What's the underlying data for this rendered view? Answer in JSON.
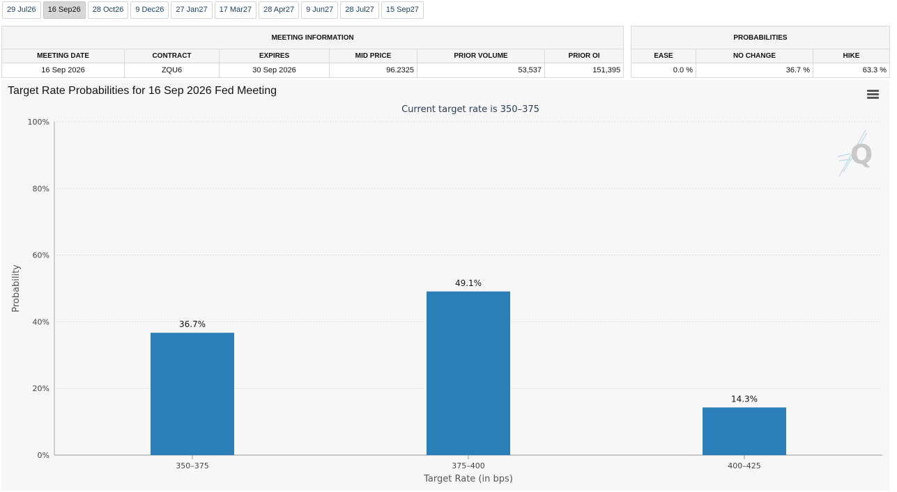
{
  "tabs": [
    {
      "label": "29 Jul26",
      "active": false
    },
    {
      "label": "16 Sep26",
      "active": true
    },
    {
      "label": "28 Oct26",
      "active": false
    },
    {
      "label": "9 Dec26",
      "active": false
    },
    {
      "label": "27 Jan27",
      "active": false
    },
    {
      "label": "17 Mar27",
      "active": false
    },
    {
      "label": "28 Apr27",
      "active": false
    },
    {
      "label": "9 Jun27",
      "active": false
    },
    {
      "label": "28 Jul27",
      "active": false
    },
    {
      "label": "15 Sep27",
      "active": false
    }
  ],
  "meeting_info": {
    "title": "MEETING INFORMATION",
    "headers": [
      "MEETING DATE",
      "CONTRACT",
      "EXPIRES",
      "MID PRICE",
      "PRIOR VOLUME",
      "PRIOR OI"
    ],
    "row": [
      "16 Sep 2026",
      "ZQU6",
      "30 Sep 2026",
      "96.2325",
      "53,537",
      "151,395"
    ]
  },
  "probabilities": {
    "title": "PROBABILITIES",
    "headers": [
      "EASE",
      "NO CHANGE",
      "HIKE"
    ],
    "row": [
      "0.0 %",
      "36.7 %",
      "63.3 %"
    ]
  },
  "chart": {
    "title": "Target Rate Probabilities for 16 Sep 2026 Fed Meeting",
    "menu_icon": "hamburger-menu-icon",
    "watermark_icon": "q-logo-icon"
  },
  "chart_data": {
    "type": "bar",
    "title": "Target Rate Probabilities for 16 Sep 2026 Fed Meeting",
    "subtitle": "Current target rate is 350–375",
    "xlabel": "Target Rate (in bps)",
    "ylabel": "Probability",
    "categories": [
      "350–375",
      "375–400",
      "400–425"
    ],
    "values": [
      36.7,
      49.1,
      14.3
    ],
    "data_labels": [
      "36.7%",
      "49.1%",
      "14.3%"
    ],
    "ylim": [
      0,
      100
    ],
    "yticks": [
      "0%",
      "20%",
      "40%",
      "60%",
      "80%",
      "100%"
    ],
    "grid": true,
    "bar_color": "#2b7fb8"
  }
}
